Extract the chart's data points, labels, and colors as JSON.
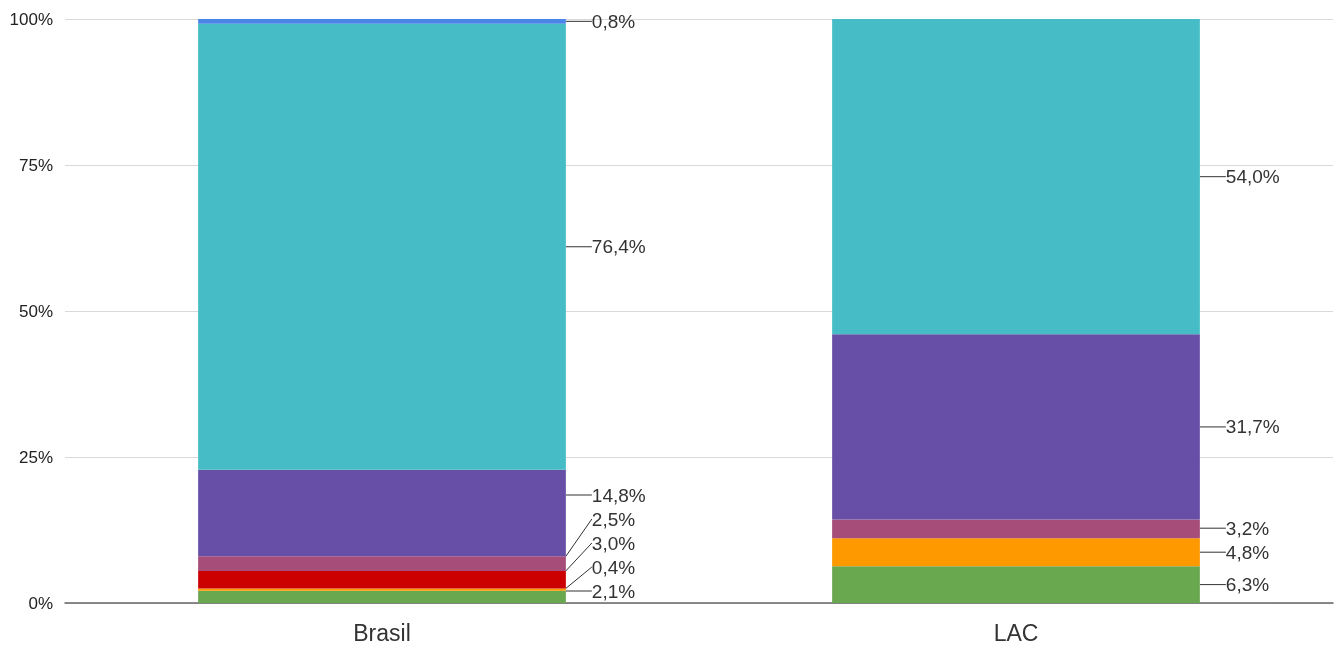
{
  "chart_data": {
    "type": "bar",
    "stacked": true,
    "categories": [
      "Brasil",
      "LAC"
    ],
    "series": [
      {
        "color": "#6aa84f",
        "values": [
          2.1,
          6.3
        ],
        "value_labels": [
          "2,1%",
          "6,3%"
        ]
      },
      {
        "color": "#ff9900",
        "values": [
          0.4,
          4.8
        ],
        "value_labels": [
          "0,4%",
          "4,8%"
        ]
      },
      {
        "color": "#cc0000",
        "values": [
          3.0,
          null
        ],
        "value_labels": [
          "3,0%",
          null
        ]
      },
      {
        "color": "#a64d79",
        "values": [
          2.5,
          3.2
        ],
        "value_labels": [
          "2,5%",
          "3,2%"
        ]
      },
      {
        "color": "#674ea7",
        "values": [
          14.8,
          31.7
        ],
        "value_labels": [
          "14,8%",
          "31,7%"
        ]
      },
      {
        "color": "#46bdc6",
        "values": [
          76.4,
          54.0
        ],
        "value_labels": [
          "76,4%",
          "54,0%"
        ]
      },
      {
        "color": "#4a86e8",
        "values": [
          0.8,
          null
        ],
        "value_labels": [
          "0,8%",
          null
        ]
      }
    ],
    "ylim": [
      0,
      100
    ],
    "yticks": [
      {
        "value": 0,
        "label": "0%"
      },
      {
        "value": 25,
        "label": "25%"
      },
      {
        "value": 50,
        "label": "50%"
      },
      {
        "value": 75,
        "label": "75%"
      },
      {
        "value": 100,
        "label": "100%"
      }
    ],
    "grid": "y"
  }
}
